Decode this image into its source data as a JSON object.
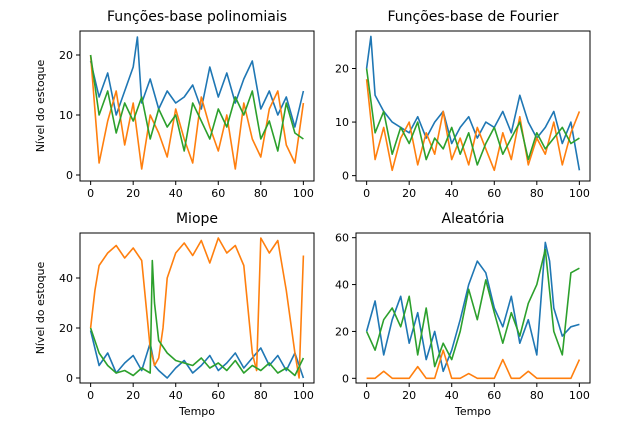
{
  "figure": {
    "ylabel": "Nível do estoque",
    "xlabel": "Tempo"
  },
  "chart_data": [
    {
      "type": "line",
      "title": "Funções-base polinomiais",
      "xlabel": "",
      "ylabel": "Nível do estoque",
      "xlim": [
        0,
        100
      ],
      "ylim": [
        -1,
        24
      ],
      "xticks": [
        0,
        20,
        40,
        60,
        80,
        100
      ],
      "yticks": [
        0,
        10,
        20
      ],
      "series": [
        {
          "color": "#1f77b4",
          "x": [
            0,
            4,
            8,
            12,
            16,
            20,
            22,
            24,
            28,
            32,
            36,
            40,
            44,
            48,
            52,
            56,
            60,
            64,
            68,
            72,
            76,
            80,
            84,
            88,
            92,
            96,
            100
          ],
          "values": [
            19,
            13,
            17,
            10,
            14,
            18,
            23,
            12,
            16,
            11,
            14,
            12,
            13,
            15,
            11,
            18,
            13,
            17,
            12,
            16,
            19,
            11,
            14,
            10,
            13,
            8,
            14
          ]
        },
        {
          "color": "#ff7f0e",
          "x": [
            0,
            4,
            8,
            12,
            16,
            20,
            24,
            28,
            32,
            36,
            40,
            44,
            48,
            52,
            56,
            60,
            64,
            68,
            72,
            76,
            80,
            84,
            88,
            92,
            96,
            100
          ],
          "values": [
            20,
            2,
            9,
            14,
            5,
            12,
            1,
            10,
            7,
            3,
            11,
            6,
            2,
            13,
            8,
            4,
            10,
            1,
            12,
            6,
            3,
            11,
            14,
            5,
            2,
            12
          ]
        },
        {
          "color": "#2ca02c",
          "x": [
            0,
            4,
            8,
            12,
            16,
            20,
            24,
            28,
            32,
            36,
            40,
            44,
            48,
            52,
            56,
            60,
            64,
            68,
            72,
            76,
            80,
            84,
            88,
            92,
            96,
            100
          ],
          "values": [
            20,
            10,
            14,
            7,
            12,
            9,
            13,
            6,
            11,
            8,
            10,
            4,
            12,
            9,
            6,
            11,
            8,
            13,
            10,
            14,
            6,
            9,
            4,
            12,
            7,
            6
          ]
        }
      ]
    },
    {
      "type": "line",
      "title": "Funções-base de Fourier",
      "xlabel": "",
      "ylabel": "",
      "xlim": [
        0,
        100
      ],
      "ylim": [
        -1,
        27
      ],
      "xticks": [
        0,
        20,
        40,
        60,
        80,
        100
      ],
      "yticks": [
        0,
        10,
        20
      ],
      "series": [
        {
          "color": "#1f77b4",
          "x": [
            0,
            2,
            4,
            8,
            12,
            16,
            20,
            24,
            28,
            32,
            36,
            40,
            44,
            48,
            52,
            56,
            60,
            64,
            68,
            72,
            76,
            80,
            84,
            88,
            92,
            96,
            100
          ],
          "values": [
            20,
            26,
            15,
            12,
            10,
            9,
            8,
            11,
            7,
            10,
            12,
            6,
            9,
            11,
            7,
            10,
            9,
            12,
            8,
            15,
            10,
            7,
            9,
            12,
            6,
            10,
            1
          ]
        },
        {
          "color": "#ff7f0e",
          "x": [
            0,
            4,
            8,
            12,
            16,
            20,
            24,
            28,
            32,
            36,
            40,
            44,
            48,
            52,
            56,
            60,
            64,
            68,
            72,
            76,
            80,
            84,
            88,
            92,
            96,
            100
          ],
          "values": [
            18,
            3,
            9,
            1,
            7,
            10,
            2,
            8,
            4,
            12,
            3,
            7,
            2,
            9,
            5,
            1,
            8,
            3,
            11,
            2,
            7,
            4,
            10,
            2,
            8,
            12
          ]
        },
        {
          "color": "#2ca02c",
          "x": [
            0,
            4,
            8,
            12,
            16,
            20,
            24,
            28,
            32,
            36,
            40,
            44,
            48,
            52,
            56,
            60,
            64,
            68,
            72,
            76,
            80,
            84,
            88,
            92,
            96,
            100
          ],
          "values": [
            20,
            8,
            12,
            4,
            9,
            6,
            10,
            3,
            7,
            5,
            9,
            4,
            8,
            2,
            6,
            9,
            4,
            7,
            10,
            3,
            8,
            5,
            7,
            9,
            6,
            7
          ]
        }
      ]
    },
    {
      "type": "line",
      "title": "Miope",
      "xlabel": "Tempo",
      "ylabel": "Nível do estoque",
      "xlim": [
        0,
        100
      ],
      "ylim": [
        -2,
        58
      ],
      "xticks": [
        0,
        20,
        40,
        60,
        80,
        100
      ],
      "yticks": [
        0,
        20,
        40
      ],
      "series": [
        {
          "color": "#1f77b4",
          "x": [
            0,
            4,
            8,
            12,
            16,
            20,
            24,
            28,
            30,
            32,
            36,
            40,
            44,
            48,
            52,
            56,
            60,
            64,
            68,
            72,
            76,
            80,
            84,
            88,
            92,
            96,
            100
          ],
          "values": [
            19,
            5,
            10,
            2,
            6,
            9,
            3,
            14,
            5,
            3,
            0,
            4,
            7,
            2,
            5,
            9,
            3,
            6,
            10,
            4,
            8,
            12,
            5,
            9,
            3,
            10,
            0
          ]
        },
        {
          "color": "#ff7f0e",
          "x": [
            0,
            2,
            4,
            8,
            12,
            16,
            20,
            24,
            28,
            30,
            32,
            34,
            36,
            40,
            44,
            48,
            52,
            56,
            60,
            64,
            68,
            72,
            76,
            78,
            80,
            84,
            88,
            92,
            96,
            98,
            100
          ],
          "values": [
            20,
            35,
            45,
            50,
            53,
            48,
            52,
            47,
            12,
            5,
            8,
            20,
            40,
            50,
            54,
            49,
            55,
            46,
            56,
            50,
            53,
            45,
            10,
            3,
            56,
            50,
            55,
            35,
            10,
            0,
            49
          ]
        },
        {
          "color": "#2ca02c",
          "x": [
            0,
            4,
            8,
            12,
            16,
            20,
            24,
            28,
            29,
            30,
            32,
            36,
            40,
            44,
            48,
            52,
            56,
            60,
            64,
            68,
            72,
            76,
            80,
            84,
            88,
            92,
            96,
            100
          ],
          "values": [
            20,
            10,
            5,
            2,
            3,
            1,
            4,
            2,
            47,
            30,
            15,
            10,
            7,
            6,
            5,
            8,
            4,
            6,
            3,
            7,
            2,
            5,
            3,
            6,
            2,
            4,
            1,
            8
          ]
        }
      ]
    },
    {
      "type": "line",
      "title": "Aleatória",
      "xlabel": "Tempo",
      "ylabel": "",
      "xlim": [
        0,
        100
      ],
      "ylim": [
        -2,
        62
      ],
      "xticks": [
        0,
        20,
        40,
        60,
        80,
        100
      ],
      "yticks": [
        0,
        20,
        40,
        60
      ],
      "series": [
        {
          "color": "#1f77b4",
          "x": [
            0,
            4,
            8,
            12,
            16,
            20,
            24,
            28,
            32,
            36,
            40,
            44,
            48,
            52,
            56,
            60,
            64,
            68,
            72,
            76,
            80,
            84,
            86,
            88,
            92,
            96,
            100
          ],
          "values": [
            20,
            33,
            10,
            25,
            35,
            15,
            28,
            8,
            20,
            3,
            12,
            25,
            40,
            50,
            45,
            30,
            22,
            35,
            15,
            25,
            10,
            58,
            50,
            30,
            18,
            22,
            23
          ]
        },
        {
          "color": "#ff7f0e",
          "x": [
            0,
            4,
            8,
            12,
            16,
            20,
            24,
            28,
            32,
            36,
            40,
            44,
            48,
            52,
            56,
            60,
            64,
            68,
            72,
            76,
            80,
            84,
            88,
            92,
            96,
            100
          ],
          "values": [
            0,
            0,
            3,
            0,
            0,
            0,
            5,
            0,
            0,
            12,
            0,
            0,
            2,
            0,
            0,
            0,
            8,
            0,
            0,
            3,
            0,
            0,
            0,
            0,
            0,
            8
          ]
        },
        {
          "color": "#2ca02c",
          "x": [
            0,
            4,
            8,
            12,
            16,
            20,
            24,
            28,
            32,
            36,
            40,
            44,
            48,
            52,
            56,
            60,
            64,
            68,
            72,
            76,
            80,
            84,
            88,
            92,
            96,
            100
          ],
          "values": [
            20,
            12,
            25,
            30,
            22,
            35,
            10,
            30,
            5,
            15,
            8,
            20,
            38,
            25,
            42,
            28,
            15,
            28,
            18,
            32,
            40,
            55,
            20,
            10,
            45,
            47
          ]
        }
      ]
    }
  ]
}
